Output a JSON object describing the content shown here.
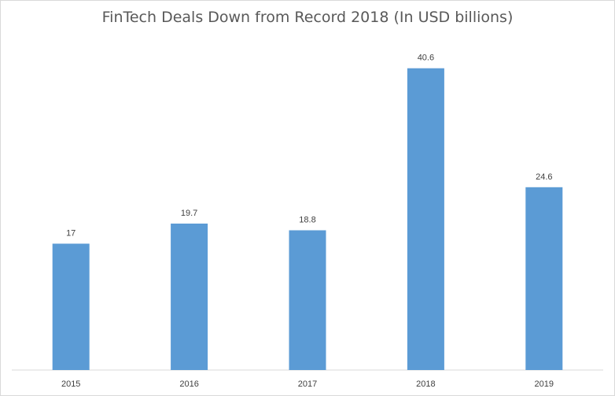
{
  "chart_data": {
    "type": "bar",
    "title": "FinTech Deals Down from Record 2018 (In USD billions)",
    "categories": [
      "2015",
      "2016",
      "2017",
      "2018",
      "2019"
    ],
    "values": [
      17,
      19.7,
      18.8,
      40.6,
      24.6
    ],
    "data_labels": [
      "17",
      "19.7",
      "18.8",
      "40.6",
      "24.6"
    ],
    "xlabel": "",
    "ylabel": "",
    "ylim": [
      0,
      45
    ],
    "grid": false,
    "legend": "none",
    "bar_color": "#5b9bd5"
  }
}
